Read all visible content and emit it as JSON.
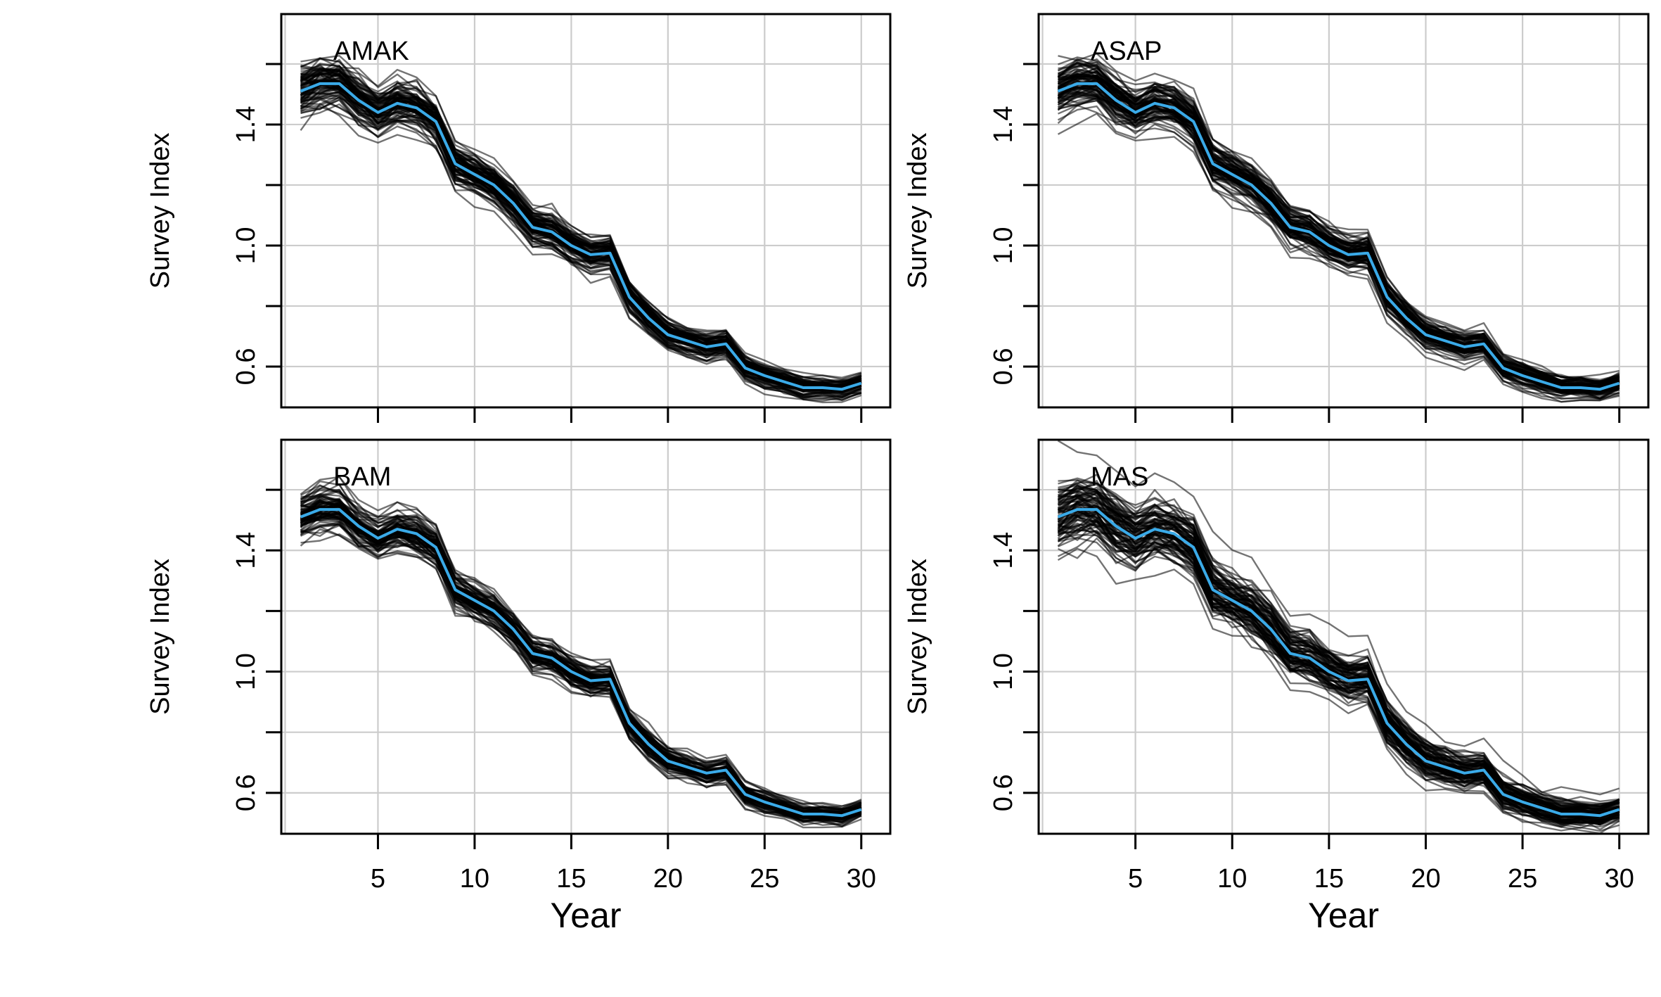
{
  "chart_data": [
    {
      "type": "line",
      "label": "AMAK",
      "xlabel": "",
      "ylabel": "Survey Index",
      "x_ticks": [
        5,
        10,
        15,
        20,
        25,
        30
      ],
      "y_ticks": [
        0.6,
        1.0,
        1.4
      ],
      "xlim": [
        0,
        31.5
      ],
      "ylim": [
        0.465,
        1.765
      ],
      "grid": true,
      "x": [
        1,
        2,
        3,
        4,
        5,
        6,
        7,
        8,
        9,
        10,
        11,
        12,
        13,
        14,
        15,
        16,
        17,
        18,
        19,
        20,
        21,
        22,
        23,
        24,
        25,
        26,
        27,
        28,
        29,
        30
      ],
      "series": [
        {
          "name": "",
          "color": "#3aaae8",
          "values": [
            1.51,
            1.535,
            1.535,
            1.48,
            1.44,
            1.47,
            1.455,
            1.41,
            1.27,
            1.235,
            1.2,
            1.14,
            1.06,
            1.045,
            1.0,
            0.97,
            0.975,
            0.83,
            0.76,
            0.705,
            0.685,
            0.665,
            0.675,
            0.595,
            0.57,
            0.55,
            0.53,
            0.53,
            0.525,
            0.545
          ]
        }
      ],
      "ensemble": {
        "color": "#000000",
        "spread_top": 0.085,
        "spread_bottom": 0.03
      }
    },
    {
      "type": "line",
      "label": "ASAP",
      "xlabel": "",
      "ylabel": "Survey Index",
      "x_ticks": [
        5,
        10,
        15,
        20,
        25,
        30
      ],
      "y_ticks": [
        0.6,
        1.0,
        1.4
      ],
      "xlim": [
        0,
        31.5
      ],
      "ylim": [
        0.465,
        1.765
      ],
      "grid": true,
      "x": [
        1,
        2,
        3,
        4,
        5,
        6,
        7,
        8,
        9,
        10,
        11,
        12,
        13,
        14,
        15,
        16,
        17,
        18,
        19,
        20,
        21,
        22,
        23,
        24,
        25,
        26,
        27,
        28,
        29,
        30
      ],
      "series": [
        {
          "name": "",
          "color": "#3aaae8",
          "values": [
            1.51,
            1.535,
            1.535,
            1.48,
            1.44,
            1.47,
            1.455,
            1.41,
            1.27,
            1.235,
            1.2,
            1.14,
            1.06,
            1.045,
            1.0,
            0.97,
            0.975,
            0.83,
            0.76,
            0.705,
            0.685,
            0.665,
            0.675,
            0.595,
            0.57,
            0.55,
            0.53,
            0.53,
            0.525,
            0.545
          ]
        }
      ],
      "ensemble": {
        "color": "#000000",
        "spread_top": 0.085,
        "spread_bottom": 0.03
      }
    },
    {
      "type": "line",
      "label": "BAM",
      "xlabel": "Year",
      "ylabel": "Survey Index",
      "x_ticks": [
        5,
        10,
        15,
        20,
        25,
        30
      ],
      "y_ticks": [
        0.6,
        1.0,
        1.4
      ],
      "xlim": [
        0,
        31.5
      ],
      "ylim": [
        0.465,
        1.765
      ],
      "grid": true,
      "x": [
        1,
        2,
        3,
        4,
        5,
        6,
        7,
        8,
        9,
        10,
        11,
        12,
        13,
        14,
        15,
        16,
        17,
        18,
        19,
        20,
        21,
        22,
        23,
        24,
        25,
        26,
        27,
        28,
        29,
        30
      ],
      "series": [
        {
          "name": "",
          "color": "#3aaae8",
          "values": [
            1.51,
            1.535,
            1.535,
            1.48,
            1.44,
            1.47,
            1.455,
            1.41,
            1.27,
            1.235,
            1.2,
            1.14,
            1.06,
            1.045,
            1.0,
            0.97,
            0.975,
            0.83,
            0.76,
            0.705,
            0.685,
            0.665,
            0.675,
            0.595,
            0.57,
            0.55,
            0.53,
            0.53,
            0.525,
            0.545
          ]
        }
      ],
      "ensemble": {
        "color": "#000000",
        "spread_top": 0.085,
        "spread_bottom": 0.03
      }
    },
    {
      "type": "line",
      "label": "MAS",
      "xlabel": "Year",
      "ylabel": "Survey Index",
      "x_ticks": [
        5,
        10,
        15,
        20,
        25,
        30
      ],
      "y_ticks": [
        0.6,
        1.0,
        1.4
      ],
      "xlim": [
        0,
        31.5
      ],
      "ylim": [
        0.465,
        1.765
      ],
      "grid": true,
      "x": [
        1,
        2,
        3,
        4,
        5,
        6,
        7,
        8,
        9,
        10,
        11,
        12,
        13,
        14,
        15,
        16,
        17,
        18,
        19,
        20,
        21,
        22,
        23,
        24,
        25,
        26,
        27,
        28,
        29,
        30
      ],
      "series": [
        {
          "name": "",
          "color": "#3aaae8",
          "values": [
            1.51,
            1.535,
            1.535,
            1.48,
            1.44,
            1.47,
            1.455,
            1.41,
            1.27,
            1.235,
            1.2,
            1.14,
            1.06,
            1.045,
            1.0,
            0.97,
            0.975,
            0.83,
            0.76,
            0.705,
            0.685,
            0.665,
            0.675,
            0.595,
            0.57,
            0.55,
            0.53,
            0.53,
            0.525,
            0.545
          ]
        }
      ],
      "ensemble": {
        "color": "#000000",
        "spread_top": 0.12,
        "spread_bottom": 0.04
      }
    }
  ]
}
